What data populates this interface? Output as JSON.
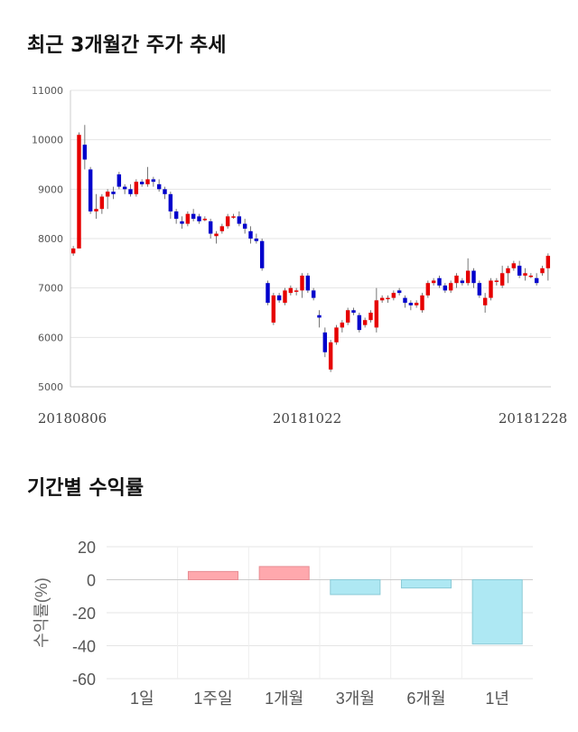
{
  "titles": {
    "price_trend": "최근 3개월간 주가 추세",
    "period_returns": "기간별 수익률"
  },
  "colors": {
    "up": "#e60000",
    "down": "#0000cc",
    "bar_positive": "#ffa8ad",
    "bar_negative": "#aee8f3",
    "grid": "#e5e5e5"
  },
  "chart_data": [
    {
      "type": "candlestick",
      "ylim": [
        5000,
        11000
      ],
      "y_ticks": [
        "11000",
        "10000",
        "9000",
        "8000",
        "7000",
        "6000",
        "5000"
      ],
      "x_labels": [
        "20180806",
        "20181022",
        "20181228"
      ],
      "grid": true,
      "candles": [
        [
          7700,
          7850,
          7650,
          7800
        ],
        [
          7800,
          10150,
          7800,
          10100
        ],
        [
          9900,
          10300,
          9400,
          9600
        ],
        [
          9400,
          9450,
          8500,
          8550
        ],
        [
          8550,
          8900,
          8400,
          8600
        ],
        [
          8600,
          8900,
          8500,
          8850
        ],
        [
          8850,
          9000,
          8600,
          8950
        ],
        [
          8950,
          9050,
          8800,
          8900
        ],
        [
          9300,
          9350,
          9000,
          9050
        ],
        [
          9050,
          9100,
          8900,
          9000
        ],
        [
          9000,
          9100,
          8850,
          8900
        ],
        [
          8900,
          9200,
          8850,
          9150
        ],
        [
          9150,
          9200,
          9050,
          9100
        ],
        [
          9100,
          9450,
          9050,
          9200
        ],
        [
          9200,
          9250,
          9050,
          9150
        ],
        [
          9100,
          9200,
          8950,
          9000
        ],
        [
          9000,
          9050,
          8800,
          8900
        ],
        [
          8900,
          8950,
          8400,
          8550
        ],
        [
          8550,
          8600,
          8300,
          8400
        ],
        [
          8350,
          8450,
          8200,
          8300
        ],
        [
          8300,
          8550,
          8250,
          8500
        ],
        [
          8500,
          8600,
          8350,
          8400
        ],
        [
          8450,
          8500,
          8300,
          8350
        ],
        [
          8400,
          8450,
          8350,
          8400
        ],
        [
          8350,
          8400,
          8000,
          8100
        ],
        [
          8050,
          8150,
          7900,
          8100
        ],
        [
          8150,
          8300,
          8100,
          8250
        ],
        [
          8250,
          8500,
          8200,
          8450
        ],
        [
          8450,
          8500,
          8400,
          8450
        ],
        [
          8450,
          8550,
          8250,
          8300
        ],
        [
          8300,
          8400,
          8100,
          8200
        ],
        [
          8150,
          8250,
          7900,
          8000
        ],
        [
          8000,
          8100,
          7900,
          7950
        ],
        [
          7950,
          8000,
          7350,
          7400
        ],
        [
          7100,
          7150,
          6650,
          6700
        ],
        [
          6300,
          6900,
          6250,
          6850
        ],
        [
          6850,
          6900,
          6700,
          6750
        ],
        [
          6700,
          7000,
          6650,
          6950
        ],
        [
          6900,
          7050,
          6850,
          7000
        ],
        [
          6950,
          7000,
          6850,
          6950
        ],
        [
          6950,
          7300,
          6800,
          7250
        ],
        [
          7250,
          7300,
          6900,
          6950
        ],
        [
          6950,
          7000,
          6750,
          6800
        ],
        [
          6450,
          6550,
          6200,
          6400
        ],
        [
          6100,
          6200,
          5600,
          5700
        ],
        [
          5350,
          5950,
          5300,
          5900
        ],
        [
          5900,
          6250,
          5850,
          6200
        ],
        [
          6200,
          6350,
          6100,
          6300
        ],
        [
          6300,
          6600,
          6250,
          6550
        ],
        [
          6550,
          6600,
          6450,
          6500
        ],
        [
          6450,
          6500,
          6100,
          6150
        ],
        [
          6250,
          6400,
          6200,
          6350
        ],
        [
          6350,
          6550,
          6300,
          6500
        ],
        [
          6200,
          7000,
          6100,
          6750
        ],
        [
          6750,
          6850,
          6700,
          6800
        ],
        [
          6800,
          6850,
          6700,
          6800
        ],
        [
          6800,
          6950,
          6750,
          6900
        ],
        [
          6950,
          7000,
          6850,
          6900
        ],
        [
          6800,
          6850,
          6600,
          6700
        ],
        [
          6700,
          6750,
          6550,
          6650
        ],
        [
          6650,
          6750,
          6600,
          6700
        ],
        [
          6550,
          6900,
          6500,
          6850
        ],
        [
          6850,
          7150,
          6800,
          7100
        ],
        [
          7100,
          7200,
          7050,
          7150
        ],
        [
          7200,
          7250,
          7000,
          7050
        ],
        [
          7050,
          7100,
          6900,
          6950
        ],
        [
          6950,
          7150,
          6900,
          7100
        ],
        [
          7100,
          7300,
          7000,
          7250
        ],
        [
          7150,
          7200,
          7050,
          7100
        ],
        [
          7100,
          7600,
          7050,
          7350
        ],
        [
          7350,
          7400,
          7000,
          7100
        ],
        [
          7100,
          7150,
          6800,
          6850
        ],
        [
          6650,
          6900,
          6500,
          6800
        ],
        [
          6800,
          7200,
          6750,
          7150
        ],
        [
          7150,
          7200,
          7050,
          7150
        ],
        [
          7050,
          7450,
          7000,
          7300
        ],
        [
          7300,
          7450,
          7100,
          7400
        ],
        [
          7400,
          7550,
          7350,
          7500
        ],
        [
          7450,
          7550,
          7200,
          7250
        ],
        [
          7250,
          7400,
          7150,
          7300
        ],
        [
          7250,
          7300,
          7200,
          7250
        ],
        [
          7200,
          7300,
          7050,
          7100
        ],
        [
          7300,
          7450,
          7250,
          7400
        ],
        [
          7400,
          7700,
          7150,
          7650
        ]
      ]
    },
    {
      "type": "bar",
      "categories": [
        "1일",
        "1주일",
        "1개월",
        "3개월",
        "6개월",
        "1년"
      ],
      "values": [
        0,
        5,
        8,
        -9,
        -5,
        -39
      ],
      "ylabel": "수익률(%)",
      "ylim": [
        -60,
        20
      ],
      "y_ticks": [
        "20",
        "0",
        "-20",
        "-40",
        "-60"
      ],
      "grid": true
    }
  ]
}
